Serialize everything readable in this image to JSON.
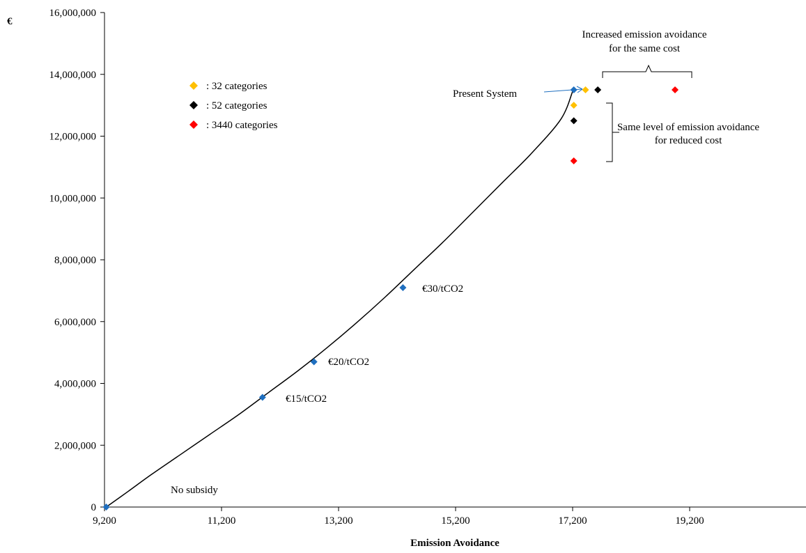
{
  "chart_data": {
    "type": "scatter",
    "title": "",
    "xlabel": "Emission Avoidance",
    "ylabel": "€",
    "xlim": [
      9200,
      21200
    ],
    "ylim": [
      0,
      16000000
    ],
    "x_ticks": [
      9200,
      11200,
      13200,
      15200,
      17200,
      19200
    ],
    "x_tick_labels": [
      "9,200",
      "11,200",
      "13,200",
      "15,200",
      "17,200",
      "19,200"
    ],
    "y_ticks": [
      0,
      2000000,
      4000000,
      6000000,
      8000000,
      10000000,
      12000000,
      14000000,
      16000000
    ],
    "y_tick_labels": [
      "0",
      "2,000,000",
      "4,000,000",
      "6,000,000",
      "8,000,000",
      "10,000,000",
      "12,000,000",
      "14,000,000",
      "16,000,000"
    ],
    "grid": false,
    "legend_position": "top-left",
    "legend": [
      {
        "label": ": 32 categories",
        "color": "#FFC000"
      },
      {
        "label": ": 52 categories",
        "color": "#000000"
      },
      {
        "label": ": 3440 categories",
        "color": "#FF0000"
      }
    ],
    "curve": {
      "color": "#000000",
      "x": [
        9230,
        9600,
        10000,
        10500,
        11000,
        11500,
        12000,
        12500,
        13000,
        13500,
        14000,
        14500,
        15000,
        15500,
        16000,
        16500,
        17000,
        17200
      ],
      "y": [
        0,
        500000,
        1050000,
        1700000,
        2350000,
        3000000,
        3700000,
        4400000,
        5150000,
        5950000,
        6800000,
        7700000,
        8600000,
        9550000,
        10500000,
        11450000,
        12550000,
        13450000
      ]
    },
    "series": [
      {
        "color": "#1F6FBF",
        "points": [
          {
            "x": 9230,
            "y": 0
          },
          {
            "x": 11900,
            "y": 3550000
          },
          {
            "x": 12780,
            "y": 4700000
          },
          {
            "x": 14300,
            "y": 7100000
          },
          {
            "x": 17220,
            "y": 13500000
          }
        ]
      },
      {
        "color": "#FFC000",
        "points": [
          {
            "x": 17220,
            "y": 13000000
          },
          {
            "x": 17420,
            "y": 13500000
          }
        ]
      },
      {
        "color": "#000000",
        "points": [
          {
            "x": 17220,
            "y": 12500000
          },
          {
            "x": 17630,
            "y": 13500000
          }
        ]
      },
      {
        "color": "#FF0000",
        "points": [
          {
            "x": 17220,
            "y": 11200000
          },
          {
            "x": 18950,
            "y": 13500000
          }
        ]
      }
    ],
    "annotations": {
      "no_subsidy": "No subsidy",
      "p15": "€15/tCO2",
      "p20": "€20/tCO2",
      "p30": "€30/tCO2",
      "present_system": "Present System",
      "increased_line1": "Increased emission avoidance",
      "increased_line2": "for the same cost",
      "same_line1": "Same level of emission avoidance",
      "same_line2": "for reduced cost"
    },
    "arrow_color": "#1F6FBF"
  }
}
